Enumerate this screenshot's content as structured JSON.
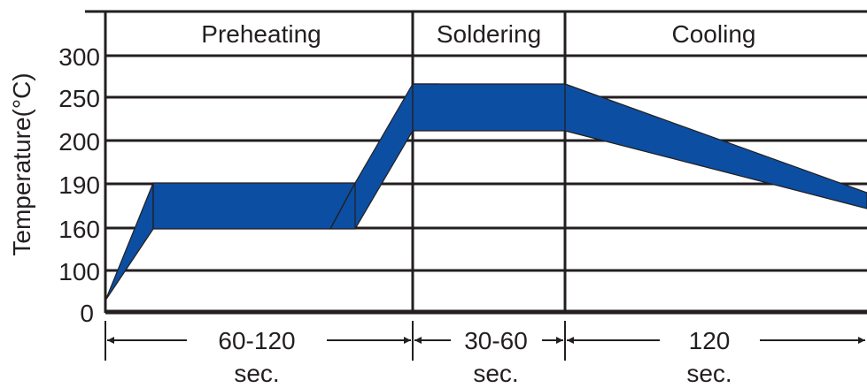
{
  "phases": [
    {
      "name": "Preheating",
      "duration": "60-120",
      "unit": "sec."
    },
    {
      "name": "Soldering",
      "duration": "30-60",
      "unit": "sec."
    },
    {
      "name": "Cooling",
      "duration": "120",
      "unit": "sec."
    }
  ],
  "y_axis": {
    "label": "Temperature(°C)",
    "ticks": [
      "0",
      "100",
      "160",
      "190",
      "200",
      "250",
      "300"
    ]
  },
  "colors": {
    "band": "#0b4ea2",
    "line": "#231f20",
    "background": "#ffffff"
  }
}
